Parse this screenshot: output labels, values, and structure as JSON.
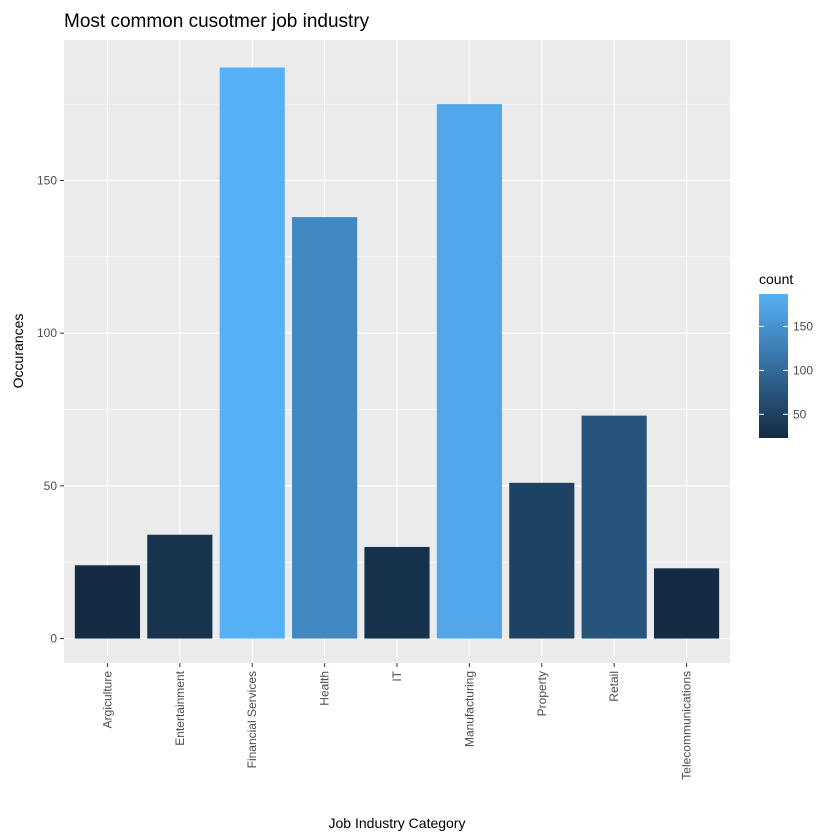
{
  "chart_data": {
    "type": "bar",
    "title": "Most common cusotmer job industry",
    "xlabel": "Job Industry Category",
    "ylabel": "Occurances",
    "categories": [
      "Argiculture",
      "Entertainment",
      "Financial Services",
      "Health",
      "IT",
      "Manufacturing",
      "Property",
      "Retail",
      "Telecommunications"
    ],
    "values": [
      24,
      34,
      187,
      138,
      30,
      175,
      51,
      73,
      23
    ],
    "ylim": [
      -8,
      196
    ],
    "yticks": [
      0,
      50,
      100,
      150
    ],
    "grid": true,
    "legend": {
      "title": "count",
      "placement": "right",
      "ticks": [
        50,
        100,
        150
      ],
      "range": [
        23,
        187
      ],
      "color_low": "#132b43",
      "color_high": "#56b1f7"
    },
    "panel_background": "#ebebeb",
    "grid_color": "#ffffff"
  }
}
